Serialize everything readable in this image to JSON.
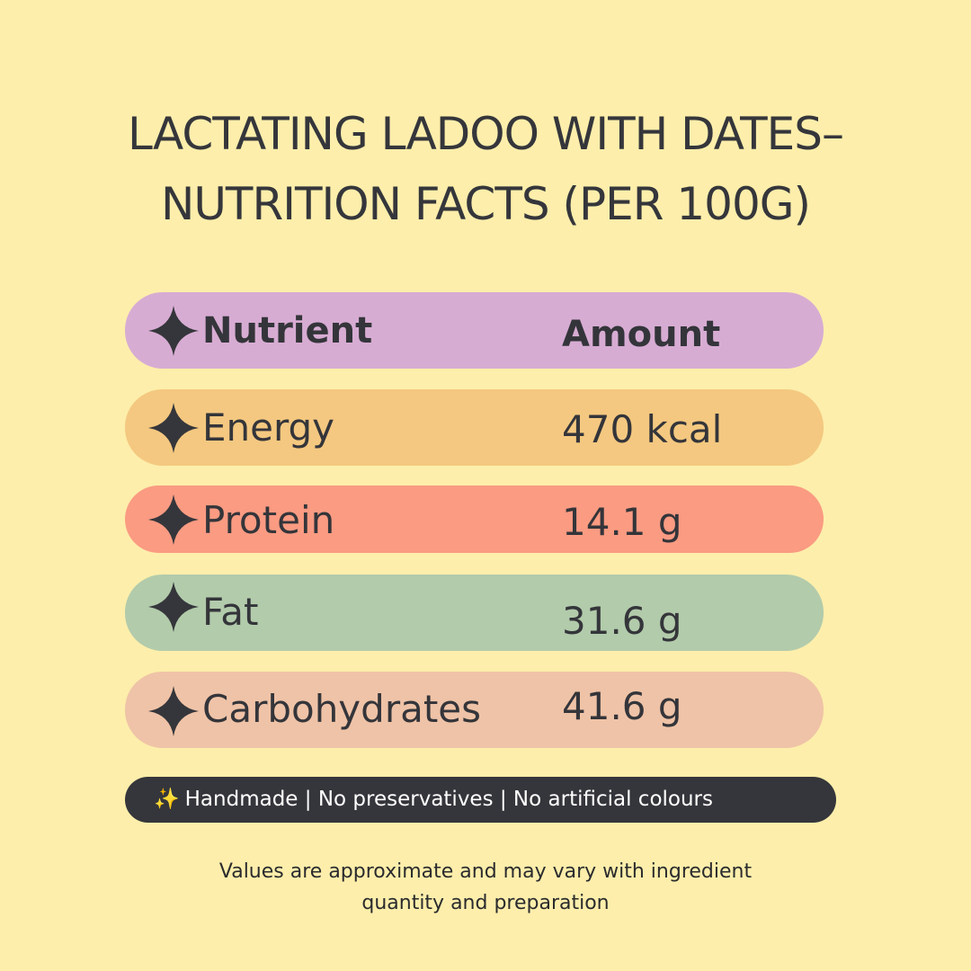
{
  "title": {
    "line1": "LACTATING LADOO WITH DATES–",
    "line2": "NUTRITION FACTS (PER 100G)"
  },
  "table": {
    "header": {
      "nutrient": "Nutrient",
      "amount": "Amount",
      "color": "#d7acd3"
    },
    "rows": [
      {
        "nutrient": "Energy",
        "amount": "470 kcal",
        "color": "#f4c880"
      },
      {
        "nutrient": "Protein",
        "amount": "14.1 g",
        "color": "#fa9b82"
      },
      {
        "nutrient": "Fat",
        "amount": "31.6 g",
        "color": "#b2cbab"
      },
      {
        "nutrient": "Carbohydrates",
        "amount": "41.6 g",
        "color": "#efc3a7"
      }
    ],
    "bullet_icon": "four-point-star-icon"
  },
  "badge": {
    "icon": "sparkles-icon",
    "text": "Handmade | No preservatives | No artificial colours"
  },
  "footnote": {
    "line1": "Values are approximate and may vary with ingredient",
    "line2": "quantity and preparation"
  },
  "colors": {
    "background": "#fdeeab",
    "text": "#35363b"
  }
}
